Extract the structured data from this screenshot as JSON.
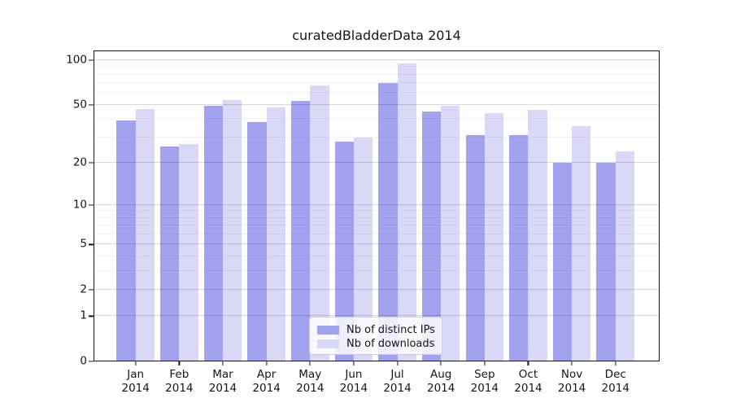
{
  "title": "curatedBladderData 2014",
  "colors": {
    "distinct_ips": "#a2a2ef",
    "downloads": "#d9d9f7",
    "axis": "#151515",
    "grid_major": "#d9d9d9",
    "grid_minor": "#f0f0f0",
    "legend_border": "#cccccc"
  },
  "legend": {
    "entries": [
      {
        "label": "Nb of distinct IPs"
      },
      {
        "label": "Nb of downloads"
      }
    ]
  },
  "y_axis": {
    "scale": "log1p",
    "tick_labels": [
      "100",
      "50",
      "20",
      "10",
      "5",
      "2",
      "1",
      "0"
    ],
    "tick_values": [
      100,
      50,
      20,
      10,
      5,
      2,
      1,
      0
    ],
    "minor_tick_values": [
      3,
      4,
      6,
      7,
      8,
      9,
      30,
      40,
      60,
      70,
      80,
      90
    ]
  },
  "chart_data": {
    "type": "bar",
    "title": "curatedBladderData 2014",
    "categories": [
      "Jan 2014",
      "Feb 2014",
      "Mar 2014",
      "Apr 2014",
      "May 2014",
      "Jun 2014",
      "Jul 2014",
      "Aug 2014",
      "Sep 2014",
      "Oct 2014",
      "Nov 2014",
      "Dec 2014"
    ],
    "series": [
      {
        "name": "Nb of distinct IPs",
        "color": "#a2a2ef",
        "values": [
          39,
          26,
          49,
          38,
          53,
          28,
          70,
          45,
          31,
          31,
          20,
          20
        ]
      },
      {
        "name": "Nb of downloads",
        "color": "#d9d9f7",
        "values": [
          47,
          27,
          54,
          48,
          68,
          30,
          95,
          49,
          44,
          46,
          36,
          24
        ]
      }
    ],
    "xlabel": "",
    "ylabel": "",
    "yscale": "log1p",
    "yticks": [
      0,
      1,
      2,
      5,
      10,
      20,
      50,
      100
    ],
    "ylim": [
      0,
      116
    ],
    "grid": "horizontal",
    "legend_position": "lower center"
  }
}
